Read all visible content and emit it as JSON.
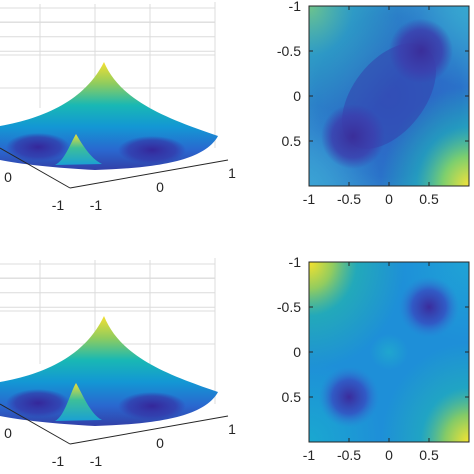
{
  "chart_data": [
    {
      "type": "surface",
      "panel": "top-left",
      "x_tick_labels": [
        "-1",
        "0",
        "1"
      ],
      "y_tick_labels": [
        "-1",
        "0"
      ],
      "grid": true,
      "shape": "quartic bowl, two minima (diagonal)"
    },
    {
      "type": "heatmap",
      "panel": "top-right",
      "x_ticks": [
        -1,
        -0.5,
        0,
        0.5
      ],
      "x_tick_labels": [
        "-1",
        "-0.5",
        "0",
        "0.5"
      ],
      "y_ticks": [
        -1,
        -0.5,
        0,
        0.5
      ],
      "y_tick_labels": [
        "-1",
        "-0.5",
        "0",
        "0.5"
      ],
      "xlim": [
        -1,
        1
      ],
      "ylim": [
        -1,
        1
      ],
      "y_reversed": true,
      "minima": [
        [
          0.4,
          -0.5
        ],
        [
          -0.45,
          0.45
        ]
      ],
      "colormap": "parula"
    },
    {
      "type": "surface",
      "panel": "bottom-left",
      "x_tick_labels": [
        "-1",
        "0",
        "1"
      ],
      "y_tick_labels": [
        "-1",
        "0"
      ],
      "grid": true,
      "shape": "quartic bowl, two minima (diagonal)"
    },
    {
      "type": "heatmap",
      "panel": "bottom-right",
      "x_ticks": [
        -1,
        -0.5,
        0,
        0.5
      ],
      "x_tick_labels": [
        "-1",
        "-0.5",
        "0",
        "0.5"
      ],
      "y_ticks": [
        -1,
        -0.5,
        0,
        0.5
      ],
      "y_tick_labels": [
        "-1",
        "-0.5",
        "0",
        "0.5"
      ],
      "xlim": [
        -1,
        1
      ],
      "ylim": [
        -1,
        1
      ],
      "y_reversed": true,
      "minima": [
        [
          0.5,
          -0.5
        ],
        [
          -0.5,
          0.5
        ]
      ],
      "colormap": "parula"
    }
  ],
  "colors": {
    "parula_low": "#3e26a8",
    "parula_mid": "#12b2c0",
    "parula_high": "#f9fb0e",
    "axis": "#262626",
    "grid": "#dcdcdc"
  }
}
